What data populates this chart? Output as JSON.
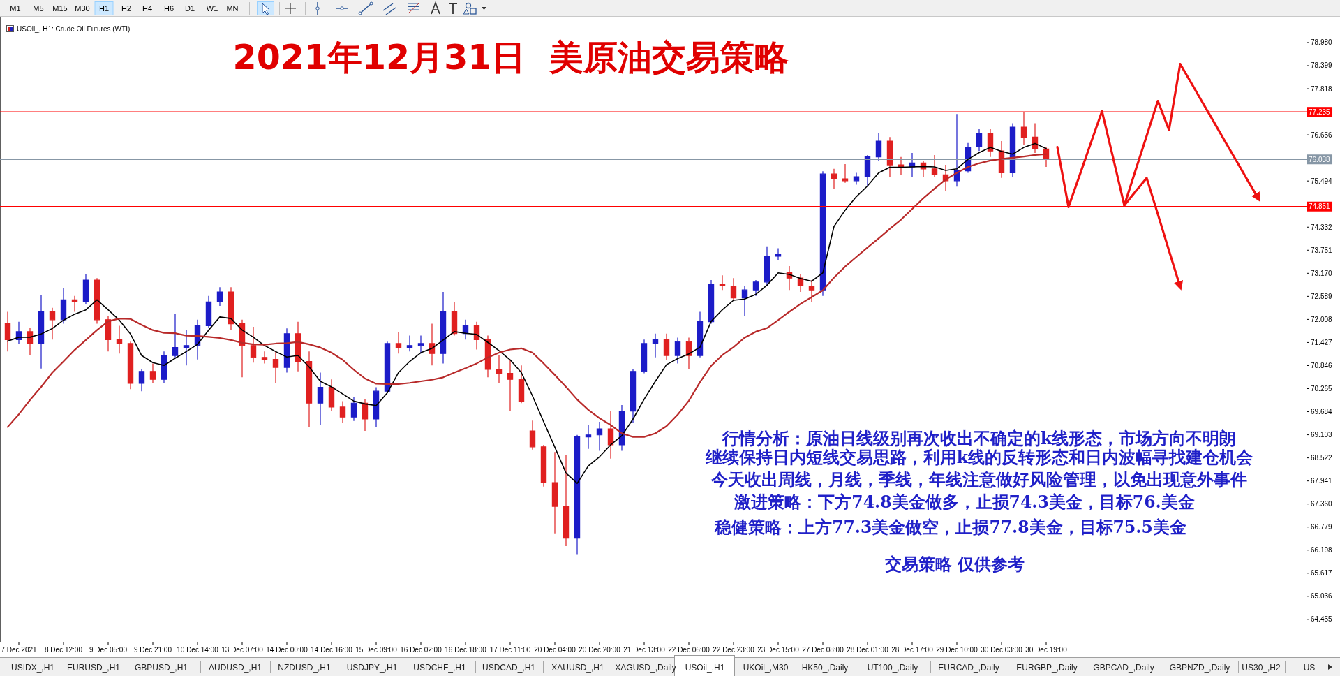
{
  "chart_data": {
    "type": "candlestick",
    "title": "2021年12月31日  美原油交易策略",
    "subtitle": "USOil_, H1: Crude Oil Futures (WTI)",
    "categories": [
      null,
      "7 Dec 2021",
      null,
      null,
      null,
      "8 Dec 12:00",
      null,
      null,
      null,
      "9 Dec 05:00",
      null,
      null,
      null,
      "9 Dec 21:00",
      null,
      null,
      null,
      "10 Dec 14:00",
      null,
      null,
      null,
      "13 Dec 07:00",
      null,
      null,
      null,
      "14 Dec 00:00",
      null,
      null,
      null,
      "14 Dec 16:00",
      null,
      null,
      null,
      "15 Dec 09:00",
      null,
      null,
      null,
      "16 Dec 02:00",
      null,
      null,
      null,
      "16 Dec 18:00",
      null,
      null,
      null,
      "17 Dec 11:00",
      null,
      null,
      null,
      "20 Dec 04:00",
      null,
      null,
      null,
      "20 Dec 20:00",
      null,
      null,
      null,
      "21 Dec 13:00",
      null,
      null,
      null,
      "22 Dec 06:00",
      null,
      null,
      null,
      "22 Dec 23:00",
      null,
      null,
      null,
      "23 Dec 15:00",
      null,
      null,
      null,
      "27 Dec 08:00",
      null,
      null,
      null,
      "28 Dec 01:00",
      null,
      null,
      null,
      "28 Dec 17:00",
      null,
      null,
      null,
      "29 Dec 10:00",
      null,
      null,
      null,
      "30 Dec 03:00",
      null,
      null,
      null,
      "30 Dec 19:00",
      null,
      null,
      null,
      null,
      null,
      null,
      null,
      null,
      null,
      null,
      null,
      null,
      null,
      null,
      null,
      null,
      null,
      null,
      null,
      null,
      null,
      null,
      null
    ],
    "ohlc": [
      [
        71.9,
        72.2,
        71.2,
        71.5
      ],
      [
        71.5,
        71.95,
        71.4,
        71.7
      ],
      [
        71.7,
        71.8,
        71.1,
        71.4
      ],
      [
        71.4,
        72.62,
        70.77,
        72.2
      ],
      [
        72.2,
        72.3,
        71.5,
        72.0
      ],
      [
        72.0,
        72.8,
        71.9,
        72.5
      ],
      [
        72.5,
        72.6,
        72.2,
        72.45
      ],
      [
        72.45,
        73.14,
        72.39,
        73.0
      ],
      [
        73.0,
        73.05,
        71.9,
        72.0
      ],
      [
        72.0,
        72.1,
        71.2,
        71.5
      ],
      [
        71.5,
        71.85,
        71.15,
        71.4
      ],
      [
        71.4,
        71.45,
        70.25,
        70.4
      ],
      [
        70.4,
        70.75,
        70.2,
        70.7
      ],
      [
        70.7,
        70.9,
        70.4,
        70.5
      ],
      [
        70.5,
        71.2,
        70.4,
        71.1
      ],
      [
        71.1,
        72.15,
        71.05,
        71.3
      ],
      [
        71.3,
        71.75,
        70.85,
        71.35
      ],
      [
        71.35,
        72.0,
        71.0,
        71.85
      ],
      [
        71.85,
        72.6,
        71.8,
        72.45
      ],
      [
        72.45,
        72.82,
        72.35,
        72.7
      ],
      [
        72.7,
        72.82,
        71.74,
        71.9
      ],
      [
        71.9,
        72.0,
        70.55,
        71.35
      ],
      [
        71.35,
        71.82,
        70.92,
        71.05
      ],
      [
        71.05,
        71.2,
        70.9,
        71.0
      ],
      [
        71.0,
        71.2,
        70.4,
        70.8
      ],
      [
        70.8,
        71.78,
        70.67,
        71.65
      ],
      [
        71.65,
        71.95,
        70.7,
        70.95
      ],
      [
        70.95,
        71.2,
        69.3,
        69.9
      ],
      [
        69.9,
        70.67,
        69.34,
        70.3
      ],
      [
        70.3,
        70.5,
        69.7,
        69.8
      ],
      [
        69.8,
        69.95,
        69.4,
        69.55
      ],
      [
        69.55,
        70.05,
        69.45,
        69.9
      ],
      [
        69.9,
        70.0,
        69.2,
        69.5
      ],
      [
        69.5,
        70.3,
        69.3,
        70.2
      ],
      [
        70.2,
        71.45,
        70.15,
        71.4
      ],
      [
        71.4,
        71.7,
        71.15,
        71.3
      ],
      [
        71.3,
        71.6,
        71.2,
        71.35
      ],
      [
        71.35,
        71.6,
        71.15,
        71.4
      ],
      [
        71.4,
        71.9,
        70.85,
        71.15
      ],
      [
        71.15,
        72.7,
        70.9,
        72.2
      ],
      [
        72.2,
        72.45,
        71.6,
        71.65
      ],
      [
        71.65,
        72.0,
        71.5,
        71.85
      ],
      [
        71.85,
        71.95,
        71.25,
        71.5
      ],
      [
        71.5,
        71.6,
        70.55,
        70.75
      ],
      [
        70.75,
        71.1,
        70.4,
        70.65
      ],
      [
        70.65,
        71.0,
        69.7,
        70.5
      ],
      [
        70.5,
        70.85,
        69.9,
        69.95
      ],
      [
        69.2,
        69.46,
        68.73,
        68.8
      ],
      [
        68.8,
        68.85,
        67.8,
        67.9
      ],
      [
        67.9,
        68.67,
        66.62,
        67.3
      ],
      [
        67.3,
        68.6,
        66.3,
        66.5
      ],
      [
        66.5,
        69.1,
        66.08,
        69.05
      ],
      [
        69.05,
        69.35,
        68.75,
        69.1
      ],
      [
        69.1,
        69.43,
        68.7,
        69.25
      ],
      [
        69.25,
        69.7,
        68.5,
        68.85
      ],
      [
        68.85,
        69.85,
        68.7,
        69.7
      ],
      [
        69.7,
        70.75,
        69.4,
        70.7
      ],
      [
        70.7,
        71.5,
        70.65,
        71.4
      ],
      [
        71.4,
        71.65,
        71.05,
        71.5
      ],
      [
        71.5,
        71.65,
        70.99,
        71.1
      ],
      [
        71.1,
        71.55,
        70.9,
        71.45
      ],
      [
        71.45,
        71.55,
        70.75,
        71.1
      ],
      [
        71.1,
        72.2,
        71.05,
        71.95
      ],
      [
        71.95,
        73.0,
        71.9,
        72.9
      ],
      [
        72.9,
        73.12,
        72.75,
        72.85
      ],
      [
        72.85,
        73.05,
        72.5,
        72.55
      ],
      [
        72.55,
        72.85,
        72.1,
        72.75
      ],
      [
        72.75,
        73.0,
        72.6,
        72.95
      ],
      [
        72.95,
        73.85,
        72.85,
        73.6
      ],
      [
        73.6,
        73.8,
        73.5,
        73.65
      ],
      [
        73.2,
        73.35,
        72.75,
        73.05
      ],
      [
        73.05,
        73.15,
        72.7,
        72.85
      ],
      [
        72.85,
        73.0,
        72.45,
        72.75
      ],
      [
        72.75,
        75.74,
        72.6,
        75.67
      ],
      [
        75.67,
        75.8,
        75.3,
        75.55
      ],
      [
        75.55,
        75.92,
        75.45,
        75.5
      ],
      [
        75.5,
        75.7,
        75.4,
        75.6
      ],
      [
        75.6,
        76.15,
        75.35,
        76.1
      ],
      [
        76.1,
        76.7,
        76.0,
        76.5
      ],
      [
        76.5,
        76.6,
        75.6,
        75.9
      ],
      [
        75.9,
        76.1,
        75.65,
        75.85
      ],
      [
        75.85,
        76.2,
        75.6,
        75.95
      ],
      [
        75.95,
        76.0,
        75.6,
        75.8
      ],
      [
        75.8,
        76.15,
        75.6,
        75.65
      ],
      [
        75.65,
        75.9,
        75.25,
        75.5
      ],
      [
        75.5,
        77.18,
        75.35,
        75.75
      ],
      [
        75.75,
        76.45,
        75.7,
        76.35
      ],
      [
        76.35,
        76.8,
        76.25,
        76.7
      ],
      [
        76.7,
        76.8,
        76.1,
        76.25
      ],
      [
        76.25,
        76.5,
        75.57,
        75.7
      ],
      [
        75.7,
        76.95,
        75.6,
        76.85
      ],
      [
        76.85,
        77.22,
        76.4,
        76.6
      ],
      [
        76.6,
        76.95,
        76.2,
        76.3
      ],
      [
        76.3,
        76.35,
        75.85,
        76.04
      ],
      null,
      null,
      null,
      null,
      null,
      null,
      null,
      null,
      null,
      null,
      null,
      null,
      null,
      null,
      null,
      null,
      null,
      null,
      null,
      null,
      null,
      null,
      null
    ],
    "colors": [
      "#e02020",
      "#1c1cc8",
      "#e02020",
      "#1c1cc8",
      "#e02020",
      "#1c1cc8",
      "#e02020",
      "#1c1cc8",
      "#e02020",
      "#e02020",
      "#e02020",
      "#e02020",
      "#1c1cc8",
      "#e02020",
      "#1c1cc8",
      "#1c1cc8",
      "#1c1cc8",
      "#1c1cc8",
      "#1c1cc8",
      "#1c1cc8",
      "#e02020",
      "#e02020",
      "#e02020",
      "#e02020",
      "#e02020",
      "#1c1cc8",
      "#e02020",
      "#e02020",
      "#1c1cc8",
      "#e02020",
      "#e02020",
      "#1c1cc8",
      "#e02020",
      "#1c1cc8",
      "#1c1cc8",
      "#e02020",
      "#1c1cc8",
      "#1c1cc8",
      "#e02020",
      "#1c1cc8",
      "#e02020",
      "#1c1cc8",
      "#e02020",
      "#e02020",
      "#e02020",
      "#e02020",
      "#e02020",
      "#e02020",
      "#e02020",
      "#e02020",
      "#e02020",
      "#1c1cc8",
      "#1c1cc8",
      "#1c1cc8",
      "#e02020",
      "#1c1cc8",
      "#1c1cc8",
      "#1c1cc8",
      "#1c1cc8",
      "#e02020",
      "#1c1cc8",
      "#e02020",
      "#1c1cc8",
      "#1c1cc8",
      "#e02020",
      "#e02020",
      "#1c1cc8",
      "#1c1cc8",
      "#1c1cc8",
      "#1c1cc8",
      "#e02020",
      "#e02020",
      "#e02020",
      "#1c1cc8",
      "#e02020",
      "#e02020",
      "#1c1cc8",
      "#1c1cc8",
      "#1c1cc8",
      "#e02020",
      "#e02020",
      "#1c1cc8",
      "#e02020",
      "#e02020",
      "#e02020",
      "#1c1cc8",
      "#1c1cc8",
      "#1c1cc8",
      "#e02020",
      "#e02020",
      "#1c1cc8",
      "#e02020",
      "#e02020",
      "#e02020",
      null,
      null,
      null,
      null,
      null,
      null,
      null,
      null,
      null,
      null,
      null,
      null,
      null,
      null,
      null,
      null,
      null,
      null,
      null,
      null,
      null,
      null,
      null
    ],
    "series": [
      {
        "type": "line",
        "color": "#000000",
        "values": [
          71.46,
          71.56,
          71.56,
          71.64,
          71.78,
          71.99,
          72.14,
          72.25,
          72.5,
          72.25,
          71.99,
          71.64,
          71.1,
          70.92,
          70.85,
          71.03,
          71.2,
          71.38,
          71.74,
          72.07,
          72.03,
          71.74,
          71.56,
          71.35,
          71.2,
          71.06,
          71.1,
          70.81,
          70.45,
          70.31,
          70.13,
          69.95,
          69.88,
          69.84,
          70.16,
          70.67,
          70.95,
          71.17,
          71.28,
          71.49,
          71.7,
          71.66,
          71.63,
          71.43,
          71.22,
          70.99,
          70.67,
          70.08,
          69.43,
          68.79,
          68.14,
          67.88,
          68.32,
          68.55,
          68.85,
          69.08,
          69.5,
          70.0,
          70.45,
          70.87,
          71.02,
          71.14,
          71.31,
          71.96,
          72.25,
          72.49,
          72.52,
          72.64,
          72.87,
          73.18,
          73.14,
          73.04,
          72.97,
          73.18,
          74.35,
          74.76,
          75.1,
          75.37,
          75.7,
          75.84,
          75.84,
          75.85,
          75.86,
          75.85,
          75.76,
          75.8,
          76.04,
          76.21,
          76.34,
          76.24,
          76.17,
          76.34,
          76.44,
          76.31,
          null,
          null,
          null,
          null,
          null,
          null,
          null,
          null,
          null,
          null,
          null,
          null,
          null,
          null,
          null,
          null,
          null,
          null,
          null,
          null,
          null,
          null,
          null
        ]
      },
      {
        "type": "line",
        "color": "#b82a2a",
        "values": [
          69.3,
          69.62,
          69.98,
          70.31,
          70.67,
          70.95,
          71.24,
          71.49,
          71.74,
          71.96,
          72.03,
          72.02,
          71.87,
          71.74,
          71.67,
          71.66,
          71.6,
          71.59,
          71.57,
          71.54,
          71.49,
          71.42,
          71.38,
          71.37,
          71.4,
          71.41,
          71.44,
          71.38,
          71.3,
          71.17,
          70.99,
          70.74,
          70.52,
          70.39,
          70.38,
          70.38,
          70.41,
          70.45,
          70.49,
          70.55,
          70.67,
          70.78,
          70.9,
          71.05,
          71.17,
          71.25,
          71.28,
          71.17,
          70.9,
          70.61,
          70.31,
          69.99,
          69.73,
          69.52,
          69.35,
          69.14,
          69.05,
          69.05,
          69.14,
          69.32,
          69.61,
          69.96,
          70.43,
          70.84,
          71.11,
          71.31,
          71.55,
          71.7,
          71.79,
          71.99,
          72.2,
          72.4,
          72.57,
          72.74,
          73.06,
          73.34,
          73.58,
          73.82,
          74.05,
          74.29,
          74.52,
          74.79,
          75.06,
          75.3,
          75.53,
          75.7,
          75.85,
          75.94,
          76.01,
          76.05,
          76.08,
          76.11,
          76.15,
          76.17,
          null,
          null,
          null,
          null,
          null,
          null,
          null,
          null,
          null,
          null,
          null,
          null,
          null,
          null,
          null,
          null,
          null,
          null,
          null,
          null,
          null,
          null,
          null
        ]
      },
      {
        "type": "line",
        "color": "#ee1111",
        "values": [
          null,
          null,
          null,
          null,
          null,
          null,
          null,
          null,
          null,
          null,
          null,
          null,
          null,
          null,
          null,
          null,
          null,
          null,
          null,
          null,
          null,
          null,
          null,
          null,
          null,
          null,
          null,
          null,
          null,
          null,
          null,
          null,
          null,
          null,
          null,
          null,
          null,
          null,
          null,
          null,
          null,
          null,
          null,
          null,
          null,
          null,
          null,
          null,
          null,
          null,
          null,
          null,
          null,
          null,
          null,
          null,
          null,
          null,
          null,
          null,
          null,
          null,
          null,
          null,
          null,
          null,
          null,
          null,
          null,
          null,
          null,
          null,
          null,
          null,
          null,
          null,
          null,
          null,
          null,
          null,
          null,
          null,
          null,
          null,
          null,
          null,
          null,
          null,
          null,
          null,
          null,
          null,
          null,
          null,
          76.35,
          74.84,
          75.64,
          76.45,
          77.25,
          76.07,
          74.88,
          75.76,
          76.63,
          77.51,
          76.78,
          78.44,
          77.96,
          77.47,
          76.99,
          76.5,
          76.02,
          75.53,
          75.05,
          null,
          null,
          null,
          null
        ]
      },
      {
        "type": "line",
        "color": "#ee1111",
        "values": [
          null,
          null,
          null,
          null,
          null,
          null,
          null,
          null,
          null,
          null,
          null,
          null,
          null,
          null,
          null,
          null,
          null,
          null,
          null,
          null,
          null,
          null,
          null,
          null,
          null,
          null,
          null,
          null,
          null,
          null,
          null,
          null,
          null,
          null,
          null,
          null,
          null,
          null,
          null,
          null,
          null,
          null,
          null,
          null,
          null,
          null,
          null,
          null,
          null,
          null,
          null,
          null,
          null,
          null,
          null,
          null,
          null,
          null,
          null,
          null,
          null,
          null,
          null,
          null,
          null,
          null,
          null,
          null,
          null,
          null,
          null,
          null,
          null,
          null,
          null,
          null,
          null,
          null,
          null,
          null,
          null,
          null,
          null,
          null,
          null,
          null,
          null,
          null,
          null,
          null,
          null,
          null,
          null,
          null,
          null,
          null,
          null,
          null,
          null,
          null,
          74.88,
          75.23,
          75.57,
          74.66,
          73.74,
          72.83,
          null,
          null,
          null,
          null,
          null,
          null,
          null,
          null,
          null,
          null,
          null
        ]
      }
    ],
    "ylim": [
      63.89,
      79.63
    ],
    "yticks": [
      {
        "value": 78.98,
        "label": "78.980"
      },
      78.399,
      77.818,
      76.656,
      75.494,
      74.332,
      73.751,
      {
        "value": 73.17,
        "label": "73.170"
      },
      72.589,
      72.008,
      71.427,
      70.846,
      70.265,
      69.684,
      69.103,
      68.522,
      67.941,
      {
        "value": 67.36,
        "label": "67.360"
      },
      66.779,
      66.198,
      65.617,
      65.036,
      64.455
    ],
    "ref_lines": [
      {
        "axis": "y",
        "value": 77.235,
        "label": "77.235",
        "color": "#ff0000"
      },
      {
        "axis": "y",
        "value": 76.038,
        "label": "76.038",
        "color": "#8797a6"
      },
      {
        "axis": "y",
        "value": 74.851,
        "label": "74.851",
        "color": "#ff0000"
      }
    ],
    "annotations": [
      "行情分析：原油日线级别再次收出不确定的k线形态，市场方向不明朗",
      "继续保持日内短线交易思路，利用k线的反转形态和日内波幅寻找建仓机会",
      "今天收出周线，月线，季线，年线注意做好风险管理，以免出现意外事件",
      "激进策略：下方74.8美金做多，止损74.3美金，目标76.美金",
      "稳健策略：上方77.3美金做空，止损77.8美金，目标75.5美金",
      "交易策略 仅供参考",
      "M1",
      "M5",
      "M15",
      "M30",
      "H1",
      "H2",
      "H4",
      "H6",
      "D1",
      "W1",
      "MN",
      "USIDX_,H1",
      "EURUSD_,H1",
      "GBPUSD_,H1",
      "AUDUSD_,H1",
      "NZDUSD_,H1",
      "USDJPY_,H1",
      "USDCHF_,H1",
      "USDCAD_,H1",
      "XAUUSD_,H1",
      "XAGUSD_,Daily",
      "USOil_,H1",
      "UKOil_,M30",
      "HK50_,Daily",
      "UT100_,Daily",
      "EURCAD_,Daily",
      "EURGBP_,Daily",
      "GBPCAD_,Daily",
      "GBPNZD_,Daily",
      "US30_,H2",
      "US"
    ]
  }
}
